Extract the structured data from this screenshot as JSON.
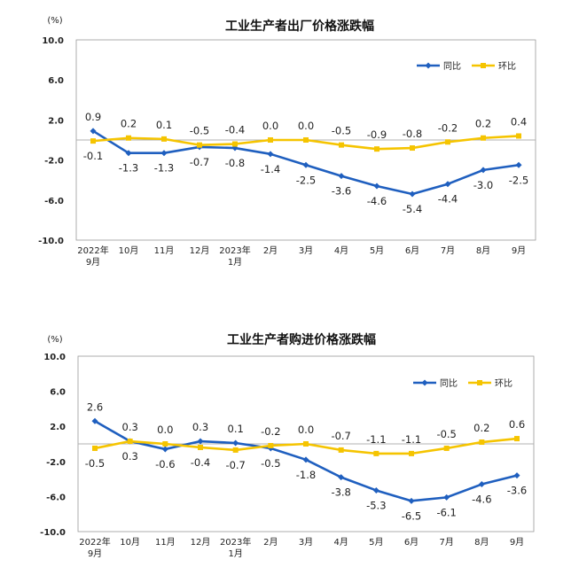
{
  "colors": {
    "yoy": "#1f5fbf",
    "mom": "#f5c400",
    "axis": "#9a9a9a",
    "zero": "#b0b0b0"
  },
  "chart_data": [
    {
      "type": "line",
      "title": "工业生产者出厂价格涨跌幅",
      "unit": "(%)",
      "categories": [
        "2022年\n9月",
        "10月",
        "11月",
        "12月",
        "2023年\n1月",
        "2月",
        "3月",
        "4月",
        "5月",
        "6月",
        "7月",
        "8月",
        "9月"
      ],
      "yticks": [
        "10.0",
        "6.0",
        "2.0",
        "-2.0",
        "-6.0",
        "-10.0"
      ],
      "ylim": [
        -10,
        10
      ],
      "legend_position": "top-right",
      "series": [
        {
          "name": "同比",
          "key": "yoy",
          "marker": "diamond",
          "label_pos": "auto",
          "values": [
            0.9,
            -1.3,
            -1.3,
            -0.7,
            -0.8,
            -1.4,
            -2.5,
            -3.6,
            -4.6,
            -5.4,
            -4.4,
            -3.0,
            -2.5
          ],
          "labels": [
            "0.9",
            "-1.3",
            "-1.3",
            "-0.7",
            "-0.8",
            "-1.4",
            "-2.5",
            "-3.6",
            "-4.6",
            "-5.4",
            "-4.4",
            "-3.0",
            "-2.5"
          ]
        },
        {
          "name": "环比",
          "key": "mom",
          "marker": "square",
          "label_pos": "auto",
          "values": [
            -0.1,
            0.2,
            0.1,
            -0.5,
            -0.4,
            0.0,
            0.0,
            -0.5,
            -0.9,
            -0.8,
            -0.2,
            0.2,
            0.4
          ],
          "labels": [
            "-0.1",
            "0.2",
            "0.1",
            "-0.5",
            "-0.4",
            "0.0",
            "0.0",
            "-0.5",
            "-0.9",
            "-0.8",
            "-0.2",
            "0.2",
            "0.4"
          ]
        }
      ]
    },
    {
      "type": "line",
      "title": "工业生产者购进价格涨跌幅",
      "unit": "(%)",
      "categories": [
        "2022年\n9月",
        "10月",
        "11月",
        "12月",
        "2023年\n1月",
        "2月",
        "3月",
        "4月",
        "5月",
        "6月",
        "7月",
        "8月",
        "9月"
      ],
      "yticks": [
        "10.0",
        "6.0",
        "2.0",
        "-2.0",
        "-6.0",
        "-10.0"
      ],
      "ylim": [
        -10,
        10
      ],
      "legend_position": "top-right",
      "series": [
        {
          "name": "同比",
          "key": "yoy",
          "marker": "diamond",
          "label_pos": "auto",
          "values": [
            2.6,
            0.3,
            -0.6,
            0.3,
            0.1,
            -0.5,
            -1.8,
            -3.8,
            -5.3,
            -6.5,
            -6.1,
            -4.6,
            -3.6
          ],
          "labels": [
            "2.6",
            "0.3",
            "-0.6",
            "0.3",
            "0.1",
            "-0.5",
            "-1.8",
            "-3.8",
            "-5.3",
            "-6.5",
            "-6.1",
            "-4.6",
            "-3.6"
          ]
        },
        {
          "name": "环比",
          "key": "mom",
          "marker": "square",
          "label_pos": "auto",
          "values": [
            -0.5,
            0.3,
            0.0,
            -0.4,
            -0.7,
            -0.2,
            0.0,
            -0.7,
            -1.1,
            -1.1,
            -0.5,
            0.2,
            0.6
          ],
          "labels": [
            "-0.5",
            "0.3",
            "0.0",
            "-0.4",
            "-0.7",
            "-0.2",
            "0.0",
            "-0.7",
            "-1.1",
            "-1.1",
            "-0.5",
            "0.2",
            "0.6"
          ]
        }
      ]
    }
  ]
}
